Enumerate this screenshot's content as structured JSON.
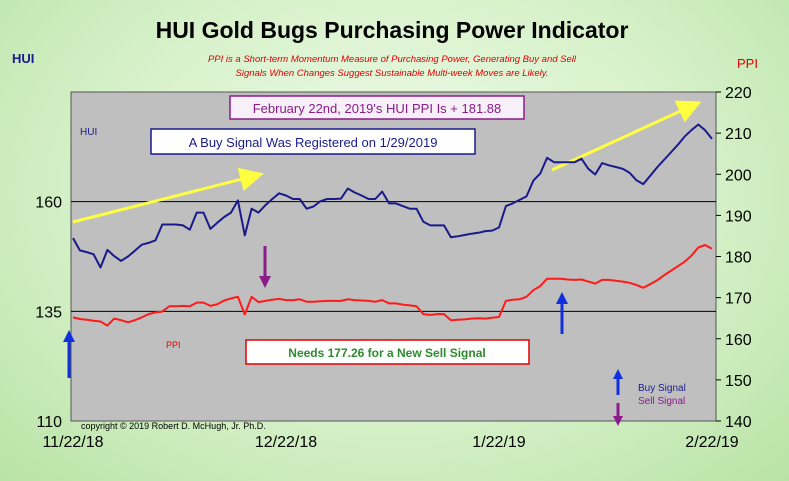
{
  "chart_data": {
    "type": "line",
    "title": "HUI Gold Bugs Purchasing Power Indicator",
    "subtitle_line1": "PPI is a Short-term Momentum Measure of Purchasing Power, Generating Buy and Sell",
    "subtitle_line2": "Signals When Changes Suggest Sustainable Multi-week Moves are Likely.",
    "left_axis_label": "HUI",
    "right_axis_label": "PPI",
    "x_ticks": [
      "11/22/18",
      "12/22/18",
      "1/22/19",
      "2/22/19"
    ],
    "left_ylim": [
      110,
      185
    ],
    "left_ticks": [
      110,
      135,
      160
    ],
    "right_ylim": [
      140,
      220
    ],
    "right_ticks": [
      140,
      150,
      160,
      170,
      180,
      190,
      200,
      210,
      220
    ],
    "reference_lines_left_axis": [
      160,
      135
    ],
    "grid": false,
    "series": [
      {
        "name": "HUI",
        "axis": "left",
        "color": "#1a1a8c",
        "values": [
          151.7,
          148.9,
          148.5,
          148.0,
          145.0,
          149.0,
          147.6,
          146.5,
          147.5,
          148.8,
          150.2,
          150.6,
          151.2,
          154.8,
          154.8,
          154.8,
          154.6,
          153.6,
          157.5,
          157.5,
          153.8,
          155.2,
          156.5,
          157.5,
          160.3,
          152.3,
          158.4,
          157.5,
          159.2,
          160.6,
          161.9,
          161.4,
          160.6,
          160.6,
          158.4,
          158.9,
          160.1,
          160.6,
          160.6,
          160.7,
          163.0,
          162.1,
          161.4,
          160.6,
          160.6,
          162.3,
          159.6,
          159.6,
          159.0,
          158.4,
          158.4,
          155.4,
          154.6,
          154.6,
          154.6,
          151.9,
          152.1,
          152.4,
          152.7,
          152.9,
          153.3,
          153.4,
          154.1,
          159.0,
          159.6,
          160.4,
          161.2,
          164.8,
          166.4,
          170.0,
          169.0,
          169.0,
          169.0,
          169.0,
          169.8,
          167.5,
          166.2,
          168.8,
          168.3,
          167.9,
          167.5,
          166.6,
          164.9,
          164.0,
          165.9,
          167.8,
          169.5,
          171.2,
          172.9,
          174.8,
          176.3,
          177.6,
          176.3,
          174.3
        ]
      },
      {
        "name": "PPI",
        "axis": "right",
        "color": "#ff1a1a",
        "values": [
          165.2,
          164.8,
          164.6,
          164.4,
          164.2,
          163.2,
          164.9,
          164.5,
          164.0,
          164.5,
          165.2,
          166.0,
          166.4,
          166.6,
          167.9,
          167.9,
          168.0,
          167.9,
          168.8,
          168.8,
          168.0,
          168.4,
          169.3,
          169.8,
          170.2,
          165.9,
          170.2,
          168.9,
          169.2,
          169.5,
          169.7,
          169.4,
          169.4,
          169.6,
          169.0,
          169.0,
          169.1,
          169.2,
          169.2,
          169.2,
          169.6,
          169.4,
          169.3,
          169.2,
          169.0,
          169.4,
          168.6,
          168.6,
          168.3,
          168.1,
          167.9,
          166.0,
          165.8,
          166.0,
          166.0,
          164.5,
          164.6,
          164.7,
          164.9,
          165.0,
          164.9,
          165.1,
          165.3,
          169.2,
          169.5,
          169.6,
          170.2,
          171.8,
          172.8,
          174.6,
          174.6,
          174.6,
          174.4,
          174.3,
          174.4,
          173.9,
          173.4,
          174.3,
          174.3,
          174.1,
          173.9,
          173.6,
          173.1,
          172.4,
          173.3,
          174.2,
          175.4,
          176.5,
          177.6,
          178.7,
          180.2,
          182.2,
          182.8,
          181.9
        ]
      }
    ]
  },
  "annotations": {
    "ppi_value_box": "February 22nd, 2019's HUI PPI Is + 181.88",
    "buy_signal_box": "A Buy Signal Was Registered on 1/29/2019",
    "sell_needed_box": "Needs 177.26  for a New Sell Signal",
    "hui_series_label": "HUI",
    "ppi_series_label": "PPI",
    "legend_buy": "Buy Signal",
    "legend_sell": "Sell Signal",
    "copyright": "copyright © 2019 Robert D. McHugh, Jr. Ph.D."
  },
  "colors": {
    "plot_bg": "#bfbfbf",
    "hui_line": "#1a1a8c",
    "ppi_line": "#ff1a1a",
    "title": "#000000",
    "subtitle": "#e00000",
    "box_border_purple": "#8b1a8b",
    "box_text_purple": "#8b1a8b",
    "box_border_blue": "#1a1a8c",
    "box_border_red": "#e00000",
    "box_text_green": "#2e8b2e",
    "trend_arrow": "#ffff40",
    "buy_arrow": "#1030e0",
    "sell_arrow": "#8b1a8b"
  }
}
